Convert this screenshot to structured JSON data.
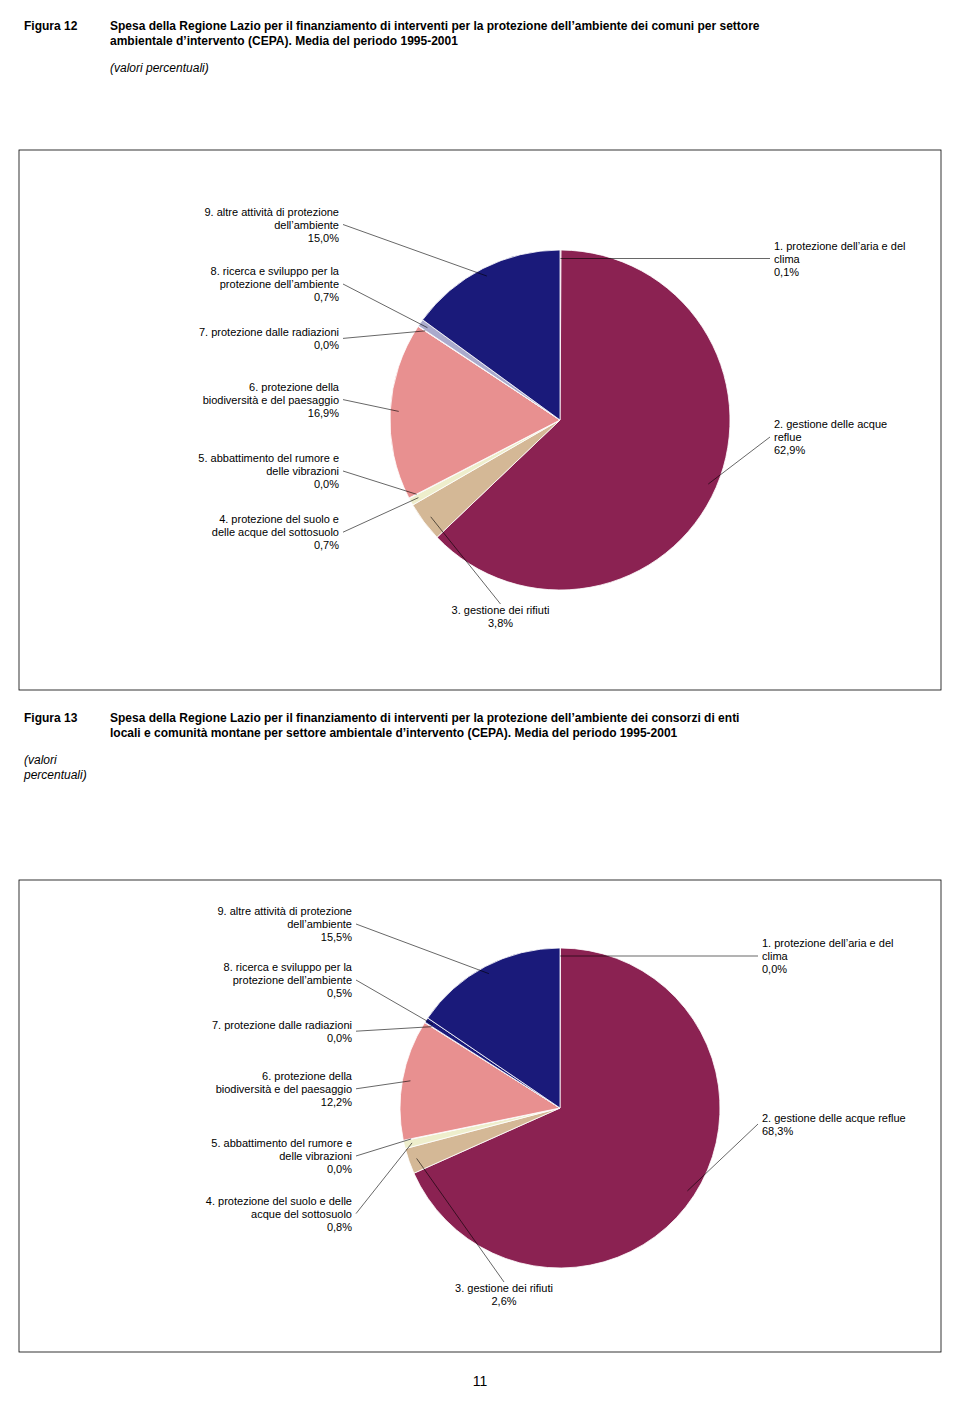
{
  "chart_data": [
    {
      "type": "pie",
      "title": "Spesa della Regione Lazio per il finanziamento di interventi per la protezione dell’ambiente dei comuni per settore\nambientale d’intervento (CEPA). Media del periodo 1995-2001",
      "subtitle": "(valori percentuali)",
      "annotations": [
        "Figura 12"
      ],
      "categories": [
        "1. protezione dell’aria e del\nclima",
        "2. gestione delle acque\nreflue",
        "3. gestione dei rifiuti",
        "4. protezione del suolo e\ndelle acque del sottosuolo",
        "5. abbattimento del rumore e\ndelle vibrazioni",
        "6. protezione della\nbiodiversità e del paesaggio",
        "7. protezione dalle radiazioni",
        "8. ricerca e sviluppo per la\nprotezione dell’ambiente",
        "9. altre attività di protezione\ndell’ambiente"
      ],
      "values": [
        0.1,
        62.9,
        3.8,
        0.7,
        0.05,
        16.9,
        0.05,
        0.7,
        15.0
      ],
      "value_labels": [
        "0,1%",
        "62,9%",
        "3,8%",
        "0,7%",
        "0,0%",
        "16,9%",
        "0,0%",
        "0,7%",
        "15,0%"
      ],
      "colors": [
        "#B5527A",
        "#8B2252",
        "#D4B896",
        "#EEEECC",
        "#AADDDD",
        "#E89090",
        "#E8D0E8",
        "#AAAACC",
        "#1A1A7A"
      ],
      "data_labels": true
    },
    {
      "type": "pie",
      "title": "Spesa della Regione Lazio per il finanziamento di interventi per la protezione dell’ambiente dei consorzi di enti\nlocali e comunità montane per settore ambientale d’intervento (CEPA). Media del periodo 1995-2001",
      "subtitle": "(valori\npercentuali)",
      "annotations": [
        "Figura 13",
        "11"
      ],
      "categories": [
        "1. protezione dell’aria e del\nclima",
        "2. gestione delle acque reflue",
        "3. gestione dei rifiuti",
        "4. protezione del suolo e delle\nacque del sottosuolo",
        "5. abbattimento del rumore e\ndelle vibrazioni",
        "6. protezione della\nbiodiversità e del paesaggio",
        "7. protezione dalle radiazioni",
        "8. ricerca e sviluppo per la\nprotezione dell’ambiente",
        "9. altre attività di protezione\ndell’ambiente"
      ],
      "values": [
        0.05,
        68.3,
        2.6,
        0.8,
        0.05,
        12.2,
        0.05,
        0.5,
        15.5
      ],
      "value_labels": [
        "0,0%",
        "68,3%",
        "2,6%",
        "0,8%",
        "0,0%",
        "12,2%",
        "0,0%",
        "0,5%",
        "15,5%"
      ],
      "colors": [
        "#B5527A",
        "#8B2252",
        "#D4B896",
        "#EEEECC",
        "#AADDDD",
        "#E89090",
        "#E8D0E8",
        "#1A1A7A",
        "#1A1A7A"
      ],
      "data_labels": true
    }
  ]
}
